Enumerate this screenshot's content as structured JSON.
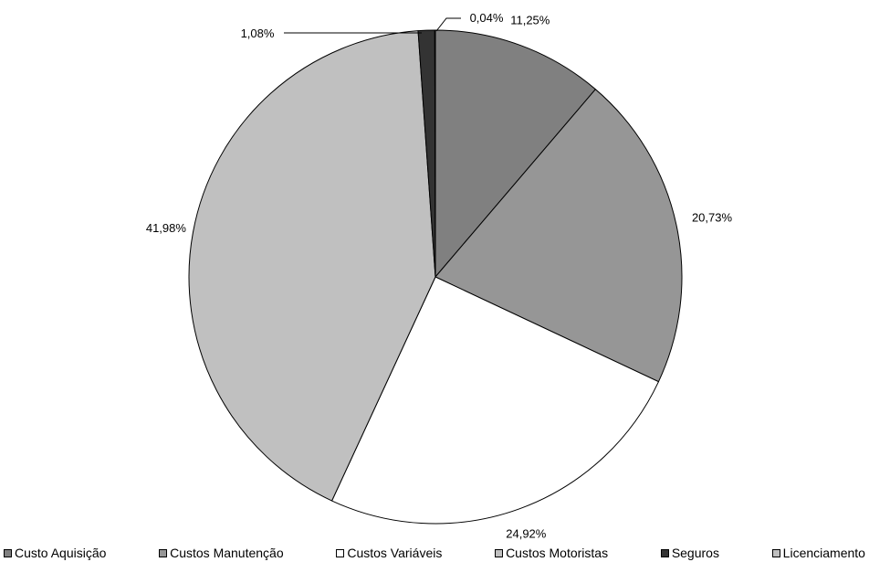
{
  "chart_data": {
    "type": "pie",
    "title": "",
    "start_angle_deg": 0,
    "direction": "clockwise",
    "legend_position": "bottom",
    "slices": [
      {
        "name": "Custo Aquisição",
        "value": 11.25,
        "label": "11,25%",
        "color": "#808080"
      },
      {
        "name": "Custos Manutenção",
        "value": 20.73,
        "label": "20,73%",
        "color": "#969696"
      },
      {
        "name": "Custos Variáveis",
        "value": 24.92,
        "label": "24,92%",
        "color": "#ffffff"
      },
      {
        "name": "Custos Motoristas",
        "value": 41.98,
        "label": "41,98%",
        "color": "#c0c0c0"
      },
      {
        "name": "Seguros",
        "value": 1.08,
        "label": "1,08%",
        "color": "#333333"
      },
      {
        "name": "Licenciamento",
        "value": 0.04,
        "label": "0,04%",
        "color": "#c0c0c0"
      }
    ]
  }
}
